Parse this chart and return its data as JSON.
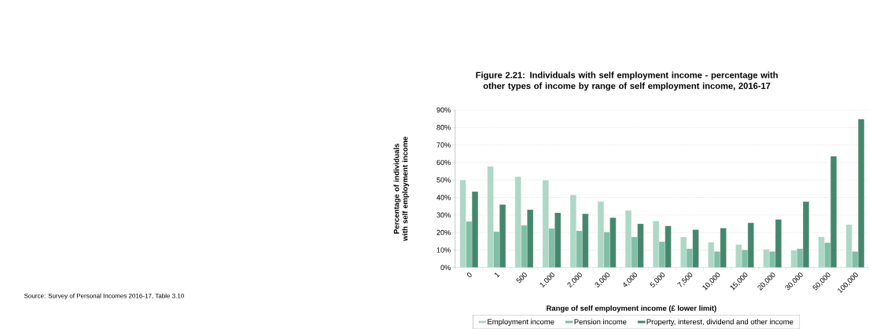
{
  "chart_data": {
    "type": "bar",
    "title": "Figure 2.21: Individuals with self employment income - percentage with other types of income by range of self employment income, 2016-17",
    "xlabel": "Range of self employment income (£ lower limit)",
    "ylabel": "Percentage of individuals with self employment income",
    "categories": [
      "0",
      "1",
      "500",
      "1,000",
      "2,000",
      "3,000",
      "4,000",
      "5,000",
      "7,500",
      "10,000",
      "15,000",
      "20,000",
      "30,000",
      "50,000",
      "100,000"
    ],
    "series": [
      {
        "name": "Employment income",
        "color": "#add8c7",
        "values": [
          50.0,
          57.7,
          51.9,
          49.9,
          41.5,
          37.6,
          32.6,
          26.6,
          17.5,
          14.5,
          13.1,
          10.4,
          9.8,
          17.5,
          24.5
        ]
      },
      {
        "name": "Pension income",
        "color": "#80bfa6",
        "values": [
          26.3,
          20.5,
          24.1,
          22.3,
          21.0,
          20.3,
          17.5,
          14.8,
          10.7,
          9.2,
          10.1,
          9.2,
          10.7,
          14.2,
          9.2
        ]
      },
      {
        "name": "Property, interest, dividend and other income",
        "color": "#45876e",
        "values": [
          43.4,
          36.0,
          33.0,
          31.3,
          30.7,
          28.5,
          25.0,
          23.8,
          21.6,
          22.5,
          25.5,
          27.4,
          37.6,
          63.5,
          84.8
        ]
      }
    ],
    "ylim": [
      0,
      90
    ],
    "yticks": [
      {
        "value": 0,
        "label": "0%"
      },
      {
        "value": 10,
        "label": "10%"
      },
      {
        "value": 20,
        "label": "20%"
      },
      {
        "value": 30,
        "label": "30%"
      },
      {
        "value": 40,
        "label": "40%"
      },
      {
        "value": 50,
        "label": "50%"
      },
      {
        "value": 60,
        "label": "60%"
      },
      {
        "value": 70,
        "label": "70%"
      },
      {
        "value": 80,
        "label": "80%"
      },
      {
        "value": 90,
        "label": "90%"
      }
    ],
    "grid": "y",
    "legend": "bottom",
    "annotations": [
      "Source: Survey of Personal Incomes 2016-17, Table 3.10"
    ]
  }
}
